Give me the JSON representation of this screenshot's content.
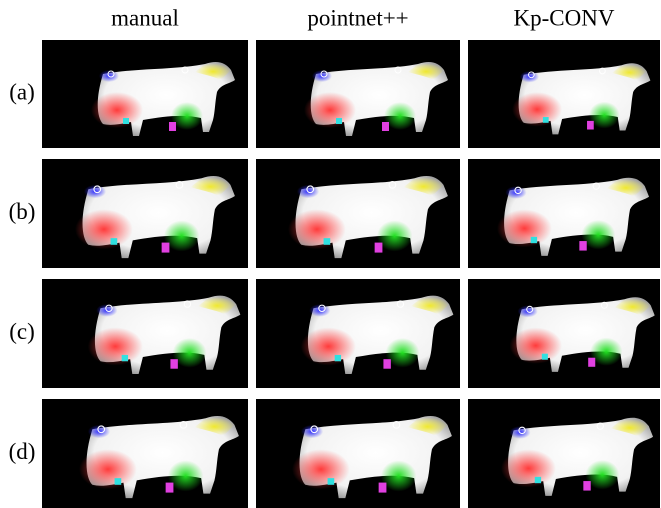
{
  "figure": {
    "columns": [
      "manual",
      "pointnet++",
      "Kp-CONV"
    ],
    "rows": [
      "(a)",
      "(b)",
      "(c)",
      "(d)"
    ]
  }
}
